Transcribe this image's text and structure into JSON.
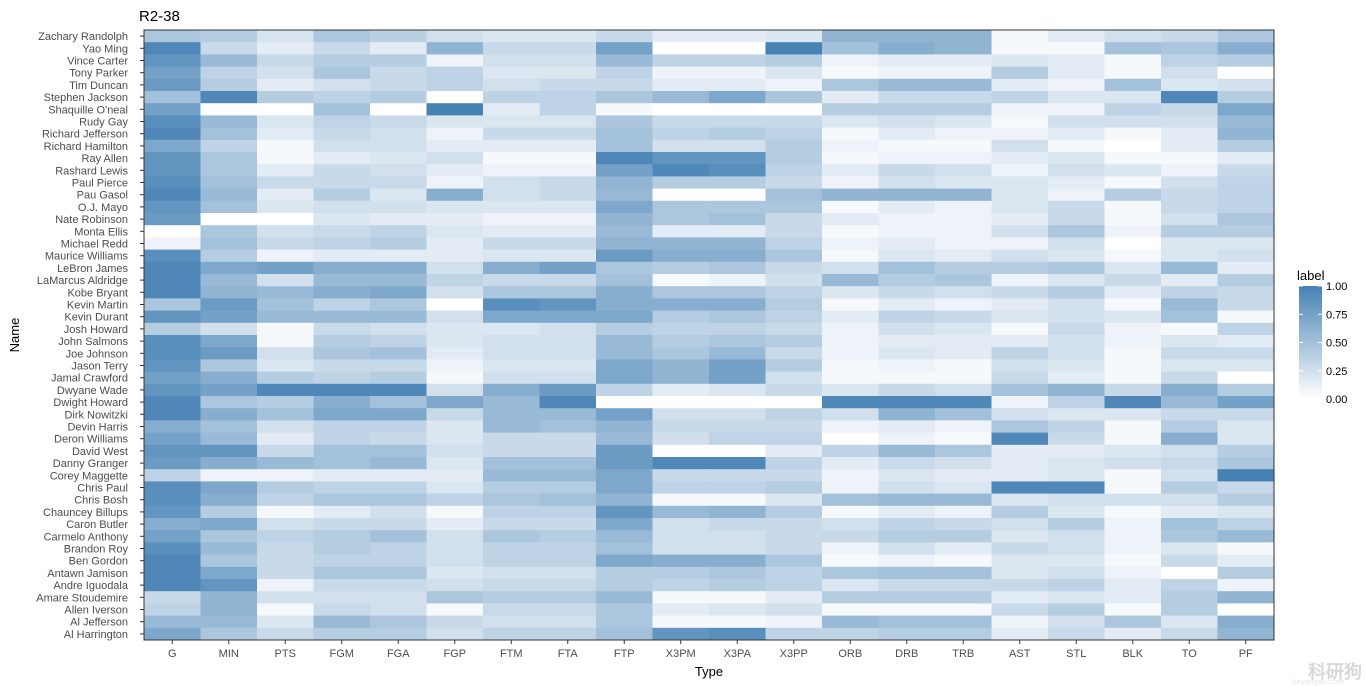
{
  "chart_data": {
    "type": "heatmap",
    "title": "R2-38",
    "xlabel": "Type",
    "ylabel": "Name",
    "x": [
      "G",
      "MIN",
      "PTS",
      "FGM",
      "FGA",
      "FGP",
      "FTM",
      "FTA",
      "FTP",
      "X3PM",
      "X3PA",
      "X3PP",
      "ORB",
      "DRB",
      "TRB",
      "AST",
      "STL",
      "BLK",
      "TO",
      "PF"
    ],
    "y": [
      "Zachary Randolph",
      "Yao Ming",
      "Vince Carter",
      "Tony Parker",
      "Tim Duncan",
      "Stephen Jackson",
      "Shaquille O'neal",
      "Rudy Gay",
      "Richard Jefferson",
      "Richard Hamilton",
      "Ray Allen",
      "Rashard Lewis",
      "Paul Pierce",
      "Pau Gasol",
      "O.J. Mayo",
      "Nate Robinson",
      "Monta Ellis",
      "Michael Redd",
      "Maurice Williams",
      "LeBron James",
      "LaMarcus Aldridge",
      "Kobe Bryant",
      "Kevin Martin",
      "Kevin Durant",
      "Josh Howard",
      "John Salmons",
      "Joe Johnson",
      "Jason Terry",
      "Jamal Crawford",
      "Dwyane Wade",
      "Dwight Howard",
      "Dirk Nowitzki",
      "Devin Harris",
      "Deron Williams",
      "David West",
      "Danny Granger",
      "Corey Maggette",
      "Chris Paul",
      "Chris Bosh",
      "Chauncey Billups",
      "Caron Butler",
      "Carmelo Anthony",
      "Brandon Roy",
      "Ben Gordon",
      "Antawn Jamison",
      "Andre Iguodala",
      "Amare Stoudemire",
      "Allen Iverson",
      "Al Jefferson",
      "Al Harrington"
    ],
    "values": [
      [
        0.45,
        0.4,
        0.22,
        0.45,
        0.38,
        0.25,
        0.2,
        0.2,
        0.3,
        0.15,
        0.15,
        0.2,
        0.6,
        0.6,
        0.6,
        0.05,
        0.15,
        0.25,
        0.3,
        0.45
      ],
      [
        0.95,
        0.3,
        0.15,
        0.3,
        0.15,
        0.6,
        0.3,
        0.3,
        0.75,
        0.0,
        0.0,
        1.0,
        0.5,
        0.65,
        0.6,
        0.05,
        0.05,
        0.5,
        0.45,
        0.65
      ],
      [
        0.85,
        0.55,
        0.3,
        0.4,
        0.4,
        0.1,
        0.25,
        0.25,
        0.55,
        0.35,
        0.35,
        0.4,
        0.1,
        0.15,
        0.15,
        0.2,
        0.15,
        0.05,
        0.35,
        0.4
      ],
      [
        0.75,
        0.35,
        0.25,
        0.45,
        0.3,
        0.35,
        0.2,
        0.2,
        0.35,
        0.1,
        0.1,
        0.2,
        0.05,
        0.1,
        0.1,
        0.4,
        0.15,
        0.05,
        0.25,
        0.0
      ],
      [
        0.8,
        0.4,
        0.15,
        0.25,
        0.3,
        0.35,
        0.25,
        0.3,
        0.3,
        0.15,
        0.15,
        0.1,
        0.45,
        0.55,
        0.55,
        0.15,
        0.1,
        0.5,
        0.2,
        0.25
      ],
      [
        0.5,
        0.95,
        0.4,
        0.35,
        0.4,
        0.0,
        0.35,
        0.35,
        0.45,
        0.55,
        0.7,
        0.45,
        0.15,
        0.3,
        0.3,
        0.35,
        0.2,
        0.2,
        0.95,
        0.4
      ],
      [
        0.75,
        0.0,
        0.0,
        0.5,
        0.0,
        1.0,
        0.15,
        0.35,
        0.05,
        0.0,
        0.0,
        0.0,
        0.4,
        0.4,
        0.4,
        0.1,
        0.1,
        0.35,
        0.3,
        0.7
      ],
      [
        0.9,
        0.55,
        0.2,
        0.35,
        0.3,
        0.2,
        0.2,
        0.2,
        0.45,
        0.3,
        0.3,
        0.3,
        0.2,
        0.25,
        0.2,
        0.05,
        0.25,
        0.25,
        0.25,
        0.55
      ],
      [
        0.95,
        0.5,
        0.15,
        0.3,
        0.25,
        0.1,
        0.3,
        0.3,
        0.5,
        0.35,
        0.4,
        0.35,
        0.05,
        0.15,
        0.1,
        0.1,
        0.15,
        0.05,
        0.15,
        0.6
      ],
      [
        0.7,
        0.35,
        0.05,
        0.25,
        0.25,
        0.15,
        0.15,
        0.15,
        0.5,
        0.25,
        0.25,
        0.4,
        0.1,
        0.05,
        0.05,
        0.25,
        0.05,
        0.0,
        0.15,
        0.4
      ],
      [
        0.85,
        0.45,
        0.05,
        0.15,
        0.2,
        0.25,
        0.05,
        0.05,
        0.95,
        0.85,
        0.85,
        0.4,
        0.05,
        0.1,
        0.1,
        0.15,
        0.2,
        0.05,
        0.05,
        0.15
      ],
      [
        0.85,
        0.45,
        0.15,
        0.3,
        0.25,
        0.15,
        0.1,
        0.1,
        0.75,
        0.95,
        0.9,
        0.35,
        0.15,
        0.3,
        0.25,
        0.1,
        0.25,
        0.2,
        0.1,
        0.3
      ],
      [
        0.9,
        0.5,
        0.3,
        0.3,
        0.3,
        0.1,
        0.25,
        0.3,
        0.6,
        0.4,
        0.4,
        0.3,
        0.1,
        0.25,
        0.2,
        0.2,
        0.15,
        0.05,
        0.25,
        0.35
      ],
      [
        0.95,
        0.55,
        0.15,
        0.4,
        0.2,
        0.65,
        0.25,
        0.3,
        0.55,
        0.0,
        0.0,
        0.5,
        0.6,
        0.6,
        0.6,
        0.2,
        0.1,
        0.4,
        0.3,
        0.35
      ],
      [
        0.85,
        0.5,
        0.2,
        0.25,
        0.25,
        0.2,
        0.2,
        0.2,
        0.7,
        0.45,
        0.45,
        0.45,
        0.05,
        0.15,
        0.1,
        0.2,
        0.3,
        0.05,
        0.3,
        0.35
      ],
      [
        0.8,
        0.0,
        0.0,
        0.2,
        0.15,
        0.15,
        0.1,
        0.1,
        0.6,
        0.45,
        0.5,
        0.3,
        0.15,
        0.1,
        0.1,
        0.15,
        0.3,
        0.05,
        0.25,
        0.45
      ],
      [
        0.0,
        0.45,
        0.25,
        0.3,
        0.35,
        0.2,
        0.15,
        0.15,
        0.55,
        0.15,
        0.15,
        0.3,
        0.05,
        0.1,
        0.1,
        0.25,
        0.45,
        0.1,
        0.4,
        0.4
      ],
      [
        0.1,
        0.5,
        0.3,
        0.35,
        0.4,
        0.15,
        0.3,
        0.3,
        0.6,
        0.6,
        0.6,
        0.35,
        0.1,
        0.15,
        0.1,
        0.1,
        0.25,
        0.0,
        0.2,
        0.2
      ],
      [
        0.9,
        0.4,
        0.1,
        0.15,
        0.15,
        0.15,
        0.2,
        0.2,
        0.8,
        0.65,
        0.65,
        0.45,
        0.05,
        0.2,
        0.15,
        0.25,
        0.2,
        0.05,
        0.2,
        0.25
      ],
      [
        0.95,
        0.7,
        0.75,
        0.65,
        0.65,
        0.25,
        0.65,
        0.75,
        0.45,
        0.4,
        0.45,
        0.3,
        0.25,
        0.5,
        0.4,
        0.4,
        0.45,
        0.2,
        0.55,
        0.15
      ],
      [
        0.95,
        0.55,
        0.25,
        0.55,
        0.55,
        0.35,
        0.3,
        0.3,
        0.5,
        0.05,
        0.1,
        0.25,
        0.55,
        0.4,
        0.45,
        0.1,
        0.2,
        0.3,
        0.15,
        0.4
      ],
      [
        0.95,
        0.6,
        0.55,
        0.65,
        0.7,
        0.25,
        0.45,
        0.45,
        0.65,
        0.45,
        0.45,
        0.35,
        0.2,
        0.3,
        0.25,
        0.3,
        0.4,
        0.15,
        0.35,
        0.3
      ],
      [
        0.45,
        0.8,
        0.5,
        0.35,
        0.45,
        0.0,
        0.9,
        0.85,
        0.65,
        0.65,
        0.65,
        0.4,
        0.05,
        0.15,
        0.1,
        0.15,
        0.25,
        0.05,
        0.55,
        0.3
      ],
      [
        0.85,
        0.75,
        0.55,
        0.55,
        0.55,
        0.25,
        0.7,
        0.7,
        0.7,
        0.4,
        0.45,
        0.35,
        0.15,
        0.35,
        0.3,
        0.2,
        0.25,
        0.2,
        0.5,
        0.05
      ],
      [
        0.4,
        0.25,
        0.05,
        0.3,
        0.25,
        0.2,
        0.2,
        0.25,
        0.4,
        0.35,
        0.35,
        0.3,
        0.1,
        0.25,
        0.2,
        0.05,
        0.3,
        0.1,
        0.05,
        0.35
      ],
      [
        0.9,
        0.7,
        0.05,
        0.4,
        0.35,
        0.2,
        0.25,
        0.25,
        0.55,
        0.4,
        0.45,
        0.4,
        0.1,
        0.15,
        0.15,
        0.15,
        0.25,
        0.1,
        0.2,
        0.15
      ],
      [
        0.9,
        0.8,
        0.25,
        0.45,
        0.5,
        0.15,
        0.25,
        0.25,
        0.55,
        0.45,
        0.55,
        0.3,
        0.1,
        0.2,
        0.15,
        0.35,
        0.25,
        0.05,
        0.3,
        0.3
      ],
      [
        0.85,
        0.45,
        0.2,
        0.3,
        0.3,
        0.1,
        0.2,
        0.2,
        0.7,
        0.6,
        0.75,
        0.4,
        0.05,
        0.1,
        0.05,
        0.25,
        0.2,
        0.05,
        0.2,
        0.2
      ],
      [
        0.75,
        0.65,
        0.4,
        0.35,
        0.4,
        0.05,
        0.25,
        0.25,
        0.7,
        0.6,
        0.75,
        0.25,
        0.05,
        0.05,
        0.05,
        0.3,
        0.15,
        0.05,
        0.3,
        0.0
      ],
      [
        0.85,
        0.75,
        0.95,
        0.95,
        0.95,
        0.25,
        0.65,
        0.8,
        0.35,
        0.15,
        0.2,
        0.3,
        0.2,
        0.3,
        0.25,
        0.5,
        0.6,
        0.3,
        0.65,
        0.4
      ],
      [
        0.95,
        0.45,
        0.4,
        0.65,
        0.5,
        0.7,
        0.55,
        0.95,
        0.0,
        0.0,
        0.0,
        0.0,
        0.95,
        0.95,
        0.95,
        0.1,
        0.35,
        0.95,
        0.55,
        0.75
      ],
      [
        0.95,
        0.65,
        0.5,
        0.7,
        0.7,
        0.3,
        0.55,
        0.55,
        0.75,
        0.25,
        0.25,
        0.35,
        0.25,
        0.6,
        0.5,
        0.25,
        0.2,
        0.2,
        0.3,
        0.3
      ],
      [
        0.65,
        0.5,
        0.25,
        0.35,
        0.35,
        0.2,
        0.55,
        0.5,
        0.6,
        0.3,
        0.3,
        0.3,
        0.1,
        0.15,
        0.1,
        0.45,
        0.35,
        0.05,
        0.4,
        0.2
      ],
      [
        0.75,
        0.55,
        0.15,
        0.35,
        0.3,
        0.2,
        0.3,
        0.3,
        0.55,
        0.25,
        0.35,
        0.35,
        0.0,
        0.1,
        0.05,
        0.95,
        0.3,
        0.05,
        0.65,
        0.2
      ],
      [
        0.85,
        0.85,
        0.3,
        0.5,
        0.5,
        0.25,
        0.3,
        0.3,
        0.8,
        0.0,
        0.0,
        0.15,
        0.35,
        0.55,
        0.45,
        0.15,
        0.15,
        0.2,
        0.25,
        0.4
      ],
      [
        0.8,
        0.65,
        0.55,
        0.5,
        0.55,
        0.2,
        0.5,
        0.5,
        0.8,
        0.95,
        0.95,
        0.35,
        0.15,
        0.3,
        0.25,
        0.15,
        0.2,
        0.25,
        0.3,
        0.45
      ],
      [
        0.35,
        0.1,
        0.1,
        0.15,
        0.15,
        0.15,
        0.55,
        0.55,
        0.7,
        0.3,
        0.3,
        0.3,
        0.1,
        0.2,
        0.15,
        0.15,
        0.2,
        0.05,
        0.25,
        1.0
      ],
      [
        0.9,
        0.7,
        0.4,
        0.35,
        0.35,
        0.2,
        0.4,
        0.4,
        0.7,
        0.35,
        0.35,
        0.4,
        0.1,
        0.25,
        0.2,
        0.95,
        0.95,
        0.05,
        0.4,
        0.3
      ],
      [
        0.9,
        0.65,
        0.35,
        0.45,
        0.45,
        0.35,
        0.45,
        0.5,
        0.6,
        0.05,
        0.05,
        0.2,
        0.5,
        0.55,
        0.55,
        0.2,
        0.25,
        0.25,
        0.25,
        0.4
      ],
      [
        0.85,
        0.4,
        0.05,
        0.15,
        0.25,
        0.05,
        0.35,
        0.35,
        0.85,
        0.55,
        0.6,
        0.4,
        0.05,
        0.15,
        0.1,
        0.4,
        0.2,
        0.05,
        0.15,
        0.2
      ],
      [
        0.65,
        0.7,
        0.25,
        0.3,
        0.3,
        0.15,
        0.3,
        0.3,
        0.7,
        0.25,
        0.3,
        0.3,
        0.25,
        0.35,
        0.3,
        0.25,
        0.4,
        0.1,
        0.5,
        0.35
      ],
      [
        0.75,
        0.45,
        0.35,
        0.4,
        0.5,
        0.25,
        0.45,
        0.4,
        0.55,
        0.25,
        0.25,
        0.3,
        0.3,
        0.4,
        0.4,
        0.2,
        0.25,
        0.1,
        0.45,
        0.55
      ],
      [
        0.9,
        0.55,
        0.3,
        0.4,
        0.35,
        0.25,
        0.35,
        0.35,
        0.5,
        0.25,
        0.25,
        0.3,
        0.1,
        0.25,
        0.15,
        0.3,
        0.25,
        0.1,
        0.2,
        0.05
      ],
      [
        0.95,
        0.45,
        0.3,
        0.35,
        0.35,
        0.25,
        0.35,
        0.35,
        0.7,
        0.65,
        0.65,
        0.45,
        0.05,
        0.1,
        0.05,
        0.2,
        0.2,
        0.05,
        0.3,
        0.15
      ],
      [
        0.95,
        0.7,
        0.3,
        0.45,
        0.45,
        0.2,
        0.25,
        0.25,
        0.4,
        0.4,
        0.45,
        0.35,
        0.45,
        0.5,
        0.5,
        0.2,
        0.25,
        0.1,
        0.0,
        0.4
      ],
      [
        0.95,
        0.85,
        0.1,
        0.3,
        0.3,
        0.25,
        0.3,
        0.3,
        0.4,
        0.35,
        0.4,
        0.35,
        0.2,
        0.3,
        0.3,
        0.3,
        0.35,
        0.15,
        0.35,
        0.1
      ],
      [
        0.3,
        0.6,
        0.25,
        0.25,
        0.25,
        0.45,
        0.4,
        0.4,
        0.55,
        0.05,
        0.05,
        0.15,
        0.4,
        0.4,
        0.4,
        0.15,
        0.2,
        0.15,
        0.4,
        0.6
      ],
      [
        0.35,
        0.6,
        0.05,
        0.3,
        0.25,
        0.05,
        0.3,
        0.3,
        0.45,
        0.15,
        0.2,
        0.25,
        0.05,
        0.05,
        0.05,
        0.3,
        0.4,
        0.05,
        0.4,
        0.0
      ],
      [
        0.55,
        0.55,
        0.2,
        0.55,
        0.45,
        0.3,
        0.25,
        0.25,
        0.45,
        0.05,
        0.05,
        0.1,
        0.55,
        0.5,
        0.5,
        0.1,
        0.25,
        0.45,
        0.2,
        0.65
      ],
      [
        0.7,
        0.45,
        0.3,
        0.4,
        0.4,
        0.25,
        0.35,
        0.35,
        0.5,
        0.85,
        0.9,
        0.35,
        0.35,
        0.4,
        0.4,
        0.15,
        0.3,
        0.15,
        0.3,
        0.6
      ]
    ],
    "color_low": "#ffffff",
    "color_high": "#4682b4",
    "legend": {
      "title": "label",
      "ticks": [
        "1.00",
        "0.75",
        "0.50",
        "0.25",
        "0.00"
      ],
      "position": "right"
    }
  },
  "watermark": {
    "text": "科研狗",
    "sub": "keyangou.com"
  }
}
